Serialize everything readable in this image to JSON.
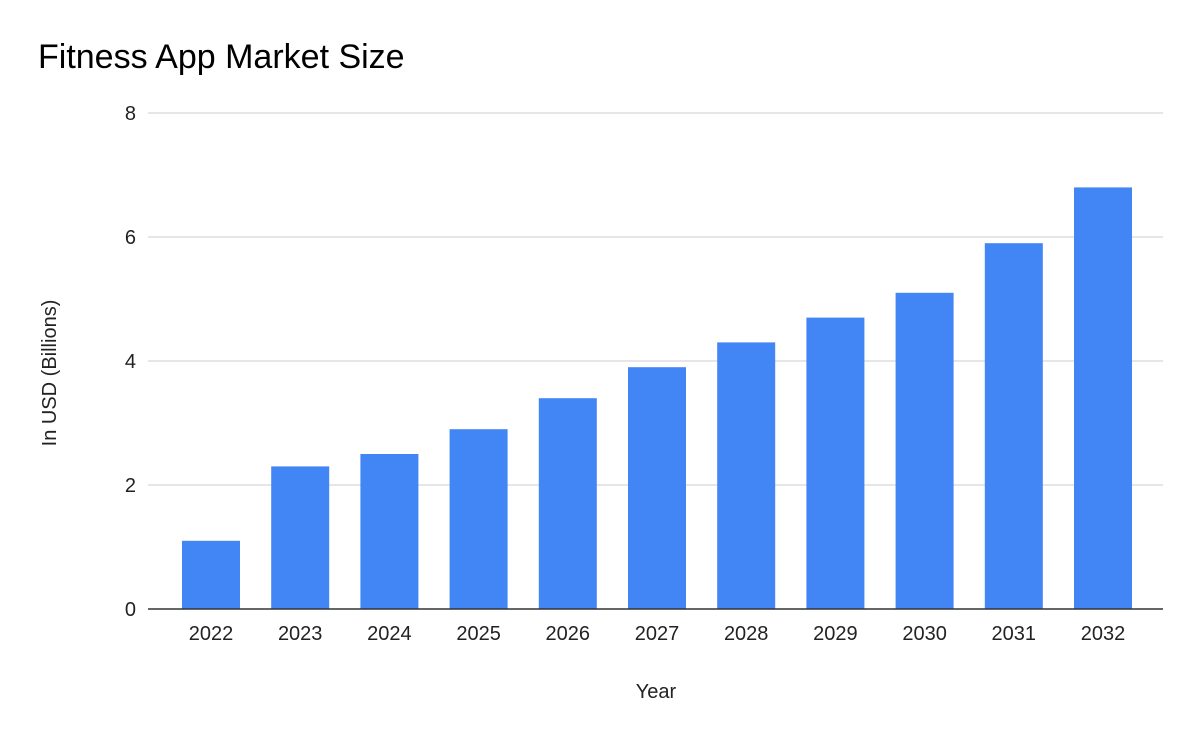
{
  "chart_data": {
    "type": "bar",
    "title": "Fitness App Market Size",
    "xlabel": "Year",
    "ylabel": "In USD (Billions)",
    "categories": [
      "2022",
      "2023",
      "2024",
      "2025",
      "2026",
      "2027",
      "2028",
      "2029",
      "2030",
      "2031",
      "2032"
    ],
    "values": [
      1.1,
      2.3,
      2.5,
      2.9,
      3.4,
      3.9,
      4.3,
      4.7,
      5.1,
      5.9,
      6.8
    ],
    "ylim": [
      0,
      8
    ],
    "yticks": [
      0,
      2,
      4,
      6,
      8
    ],
    "grid": true,
    "legend": "none",
    "bar_color": "#4285f4"
  }
}
